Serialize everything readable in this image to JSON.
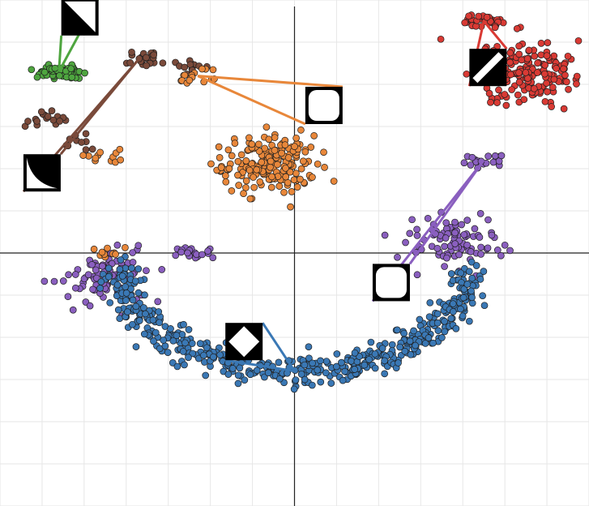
{
  "chart_data": {
    "type": "scatter",
    "title": "",
    "xlabel": "",
    "ylabel": "",
    "xlim": [
      -7,
      7
    ],
    "ylim": [
      -6,
      6
    ],
    "grid": true,
    "axes_at_origin": true,
    "colors": {
      "green": "#4ea53f",
      "brown": "#7a4a3a",
      "orange": "#e8873a",
      "red": "#d93a34",
      "purple": "#8a5fbf",
      "blue": "#3a78b5",
      "grid": "#e6e6e6",
      "axis": "#222222",
      "point_edge": "#1f1f1f"
    },
    "clusters": [
      {
        "color": "green",
        "shape": "line",
        "center": [
          -5.6,
          4.3
        ],
        "points": 70
      },
      {
        "color": "brown",
        "shape": "line",
        "center": [
          -3.7,
          4.6
        ],
        "points": 22
      },
      {
        "color": "brown",
        "shape": "line",
        "center": [
          -2.6,
          4.4
        ],
        "points": 14
      },
      {
        "color": "orange",
        "shape": "line",
        "center": [
          -2.3,
          4.2
        ],
        "points": 16
      },
      {
        "color": "brown",
        "shape": "line",
        "center": [
          -5.9,
          3.2
        ],
        "points": 18
      },
      {
        "color": "brown",
        "shape": "line",
        "center": [
          -5.1,
          2.6
        ],
        "points": 10
      },
      {
        "color": "orange",
        "shape": "line",
        "center": [
          -4.6,
          2.3
        ],
        "points": 12
      },
      {
        "color": "orange",
        "shape": "blob",
        "center": [
          -0.6,
          2.1
        ],
        "points": 190
      },
      {
        "color": "red",
        "shape": "line",
        "center": [
          4.5,
          5.5
        ],
        "points": 35
      },
      {
        "color": "red",
        "shape": "blob",
        "center": [
          5.6,
          4.3
        ],
        "points": 170
      },
      {
        "color": "purple",
        "shape": "line",
        "center": [
          4.5,
          2.2
        ],
        "points": 22
      },
      {
        "color": "purple",
        "shape": "blob",
        "center": [
          3.8,
          0.3
        ],
        "points": 90
      },
      {
        "color": "purple",
        "shape": "blob",
        "center": [
          -4.5,
          -0.6
        ],
        "points": 85
      },
      {
        "color": "orange",
        "shape": "line",
        "center": [
          -4.5,
          0.0
        ],
        "points": 10
      },
      {
        "color": "purple",
        "shape": "line",
        "center": [
          -2.4,
          0.0
        ],
        "points": 22
      },
      {
        "color": "blue",
        "shape": "arc",
        "center": [
          0.0,
          -2.8
        ],
        "points": 520
      }
    ],
    "thumbnails": [
      {
        "icon": "diagonal-edge-dark-top-right-icon",
        "color": "green",
        "at": [
          -5.1,
          5.6
        ]
      },
      {
        "icon": "curved-corner-bottom-left-icon",
        "color": "brown",
        "at": [
          -6.0,
          1.9
        ]
      },
      {
        "icon": "white-rounded-square-icon",
        "color": "orange",
        "at": [
          0.7,
          3.5
        ]
      },
      {
        "icon": "diagonal-stripe-icon",
        "color": "red",
        "at": [
          4.6,
          4.4
        ]
      },
      {
        "icon": "white-rounded-square-icon",
        "color": "purple",
        "at": [
          2.3,
          -0.7
        ]
      },
      {
        "icon": "white-diamond-icon",
        "color": "blue",
        "at": [
          -1.2,
          -2.1
        ]
      }
    ]
  }
}
